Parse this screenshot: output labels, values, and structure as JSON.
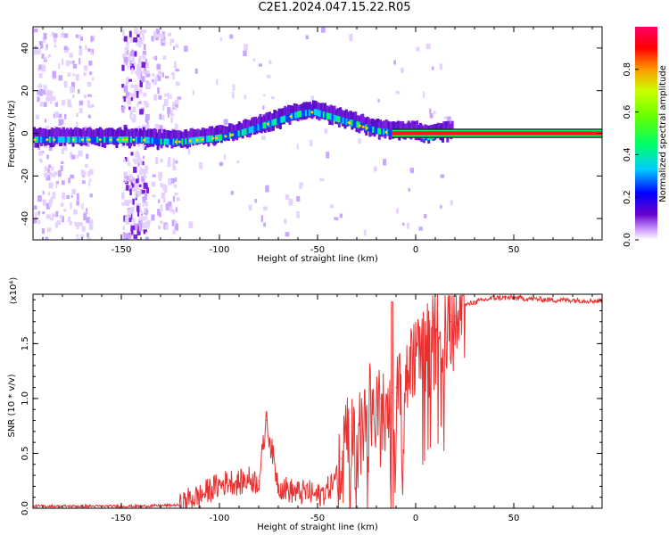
{
  "title": "C2E1.2024.047.15.22.R05",
  "chart_data": [
    {
      "type": "heatmap",
      "title": "C2E1.2024.047.15.22.R05",
      "xlabel": "Height of straight line (km)",
      "ylabel": "Frequency (Hz)",
      "xlim": [
        -195,
        95
      ],
      "ylim": [
        -50,
        50
      ],
      "x_ticks": [
        -150,
        -100,
        -50,
        0,
        50
      ],
      "y_ticks": [
        -40,
        -20,
        0,
        20,
        40
      ],
      "colorbar": {
        "label": "Normalized spectral amplitude",
        "range": [
          0,
          1
        ],
        "ticks": [
          "0.0",
          "0.2",
          "0.4",
          "0.6",
          "0.8"
        ],
        "colors": [
          "#ffffff",
          "#cc99ff",
          "#6600cc",
          "#0000ff",
          "#00ccff",
          "#00ff66",
          "#ccff00",
          "#ff9900",
          "#ff0000",
          "#ff0066"
        ]
      },
      "ridge": {
        "x": [
          -195,
          -175,
          -160,
          -150,
          -140,
          -130,
          -120,
          -110,
          -100,
          -90,
          -80,
          -70,
          -60,
          -52,
          -45,
          -38,
          -30,
          -20,
          -10,
          0,
          5,
          10,
          15,
          20,
          40,
          60,
          80,
          95
        ],
        "y": [
          -3,
          -3,
          -3,
          -3,
          -3,
          -4,
          -4,
          -3,
          -2,
          0,
          3,
          6,
          9,
          10,
          8,
          6,
          4,
          1,
          0,
          0,
          -2,
          -1,
          0,
          0,
          0,
          0,
          0,
          0
        ]
      }
    },
    {
      "type": "line",
      "xlabel": "Height of straight line (km)",
      "ylabel": "SNR (10 * v/v)",
      "y_multiplier": "(x10⁴)",
      "xlim": [
        -195,
        95
      ],
      "ylim": [
        0,
        1.95
      ],
      "x_ticks": [
        -150,
        -100,
        -50,
        0,
        50
      ],
      "y_ticks": [
        "0.0",
        "0.5",
        "1.0",
        "1.5"
      ],
      "color": "#e83030",
      "series": [
        {
          "x": [
            -195,
            -180,
            -160,
            -140,
            -120,
            -115,
            -110,
            -105,
            -100,
            -95,
            -90,
            -85,
            -80,
            -76,
            -70,
            -65,
            -60,
            -55,
            -50,
            -45,
            -40,
            -38,
            -35,
            -30,
            -28,
            -25,
            -22,
            -20,
            -18,
            -15,
            -12,
            -10,
            -8,
            -5,
            -3,
            0,
            3,
            5,
            8,
            10,
            12,
            15,
            18,
            20,
            22,
            25,
            30,
            35,
            40,
            50,
            60,
            70,
            80,
            95
          ],
          "y": [
            0.02,
            0.02,
            0.02,
            0.02,
            0.03,
            0.1,
            0.12,
            0.18,
            0.22,
            0.26,
            0.24,
            0.28,
            0.25,
            0.8,
            0.22,
            0.18,
            0.15,
            0.16,
            0.12,
            0.18,
            0.3,
            0.45,
            0.55,
            0.6,
            0.7,
            0.75,
            0.9,
            0.85,
            1.0,
            1.0,
            1.05,
            1.1,
            1.15,
            1.25,
            1.3,
            1.35,
            1.4,
            1.45,
            1.5,
            1.55,
            1.6,
            1.62,
            1.7,
            1.75,
            1.8,
            1.85,
            1.88,
            1.9,
            1.92,
            1.92,
            1.91,
            1.9,
            1.9,
            1.89
          ]
        }
      ]
    }
  ]
}
